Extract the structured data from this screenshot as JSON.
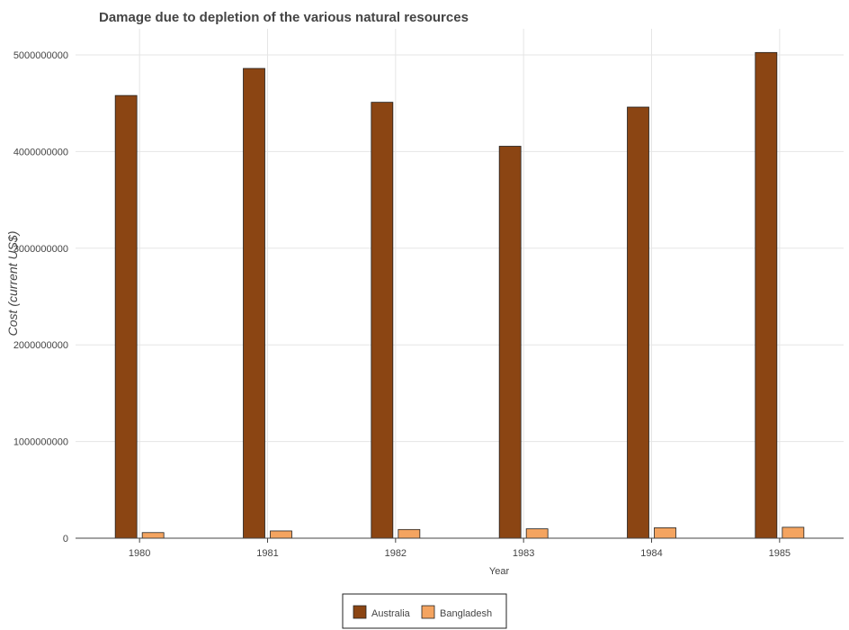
{
  "chart_data": {
    "type": "bar",
    "title": "Damage due to depletion of the various natural resources",
    "xlabel": "Year",
    "ylabel": "Cost (current US$)",
    "categories": [
      "1980",
      "1981",
      "1982",
      "1983",
      "1984",
      "1985"
    ],
    "series": [
      {
        "name": "Australia",
        "color": "#8b4513",
        "values": [
          4580000000,
          4860000000,
          4510000000,
          4055000000,
          4460000000,
          5025000000
        ]
      },
      {
        "name": "Bangladesh",
        "color": "#f4a460",
        "values": [
          58000000,
          75000000,
          90000000,
          97000000,
          108000000,
          113000000
        ]
      }
    ],
    "ylim": [
      0,
      5270000000
    ],
    "yticks": [
      "0",
      "1000000000",
      "2000000000",
      "3000000000",
      "4000000000",
      "5000000000"
    ],
    "ytick_values": [
      0,
      1000000000,
      2000000000,
      3000000000,
      4000000000,
      5000000000
    ],
    "grid": true,
    "legend_position": "bottom-center"
  }
}
